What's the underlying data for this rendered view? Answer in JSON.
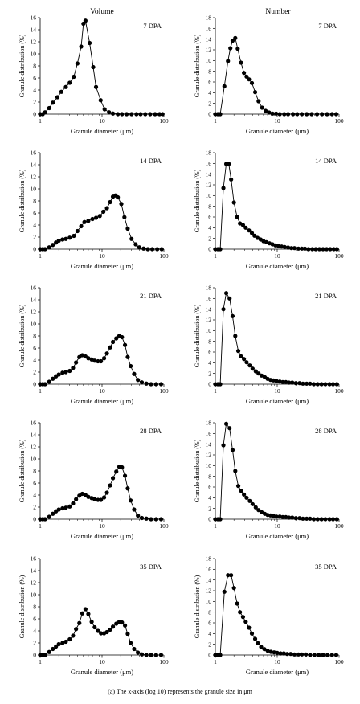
{
  "column_titles": [
    "Volume",
    "Number"
  ],
  "caption": "(a)  The x-axis (log 10) represents the granule size in μm",
  "chart_data": [
    {
      "type": "line",
      "panel": "7 DPA",
      "column": "Volume",
      "xscale": "log",
      "xlim": [
        1,
        100
      ],
      "ylim": [
        0,
        16
      ],
      "yticks": [
        0,
        2,
        4,
        6,
        8,
        10,
        12,
        14,
        16
      ],
      "xticks": [
        1,
        10,
        100
      ],
      "xlabel": "Granule diameter (μm)",
      "ylabel": "Granule distribution (%)",
      "x": [
        1,
        1.1,
        1.2,
        1.4,
        1.6,
        1.9,
        2.2,
        2.6,
        3,
        3.5,
        4,
        4.6,
        5,
        5.4,
        6.3,
        7.2,
        8,
        9.5,
        11,
        13,
        15,
        18,
        21,
        25,
        30,
        36,
        42,
        50,
        60,
        72,
        85,
        95
      ],
      "y": [
        0,
        0,
        0.3,
        1,
        1.9,
        2.8,
        3.7,
        4.5,
        5.2,
        6.2,
        8.4,
        11.2,
        15,
        15.5,
        11.8,
        7.8,
        4.5,
        2.3,
        0.8,
        0.3,
        0.1,
        0,
        0,
        0,
        0,
        0,
        0,
        0,
        0,
        0,
        0,
        0
      ]
    },
    {
      "type": "line",
      "panel": "7 DPA",
      "column": "Number",
      "xscale": "log",
      "xlim": [
        1,
        100
      ],
      "ylim": [
        0,
        18
      ],
      "yticks": [
        0,
        2,
        4,
        6,
        8,
        10,
        12,
        14,
        16,
        18
      ],
      "xticks": [
        1,
        10,
        100
      ],
      "xlabel": "Granule diameter (μm)",
      "ylabel": "Granule distribution (%)",
      "x": [
        1,
        1.1,
        1.2,
        1.4,
        1.6,
        1.75,
        1.9,
        2.1,
        2.3,
        2.6,
        2.9,
        3.2,
        3.5,
        3.9,
        4.4,
        5,
        5.7,
        6.5,
        7.4,
        8.4,
        9.6,
        11,
        13,
        15,
        18,
        21,
        25,
        30,
        36,
        44,
        53,
        64,
        77,
        90
      ],
      "y": [
        0,
        0,
        0,
        5.2,
        9.9,
        12.3,
        13.7,
        14.2,
        12.2,
        9.6,
        7.7,
        7,
        6.5,
        5.8,
        4.1,
        2.4,
        1.2,
        0.6,
        0.3,
        0.1,
        0.1,
        0,
        0,
        0,
        0,
        0,
        0,
        0,
        0,
        0,
        0,
        0,
        0,
        0
      ]
    },
    {
      "type": "line",
      "panel": "14 DPA",
      "column": "Volume",
      "xscale": "log",
      "xlim": [
        1,
        100
      ],
      "ylim": [
        0,
        16
      ],
      "yticks": [
        0,
        2,
        4,
        6,
        8,
        10,
        12,
        14,
        16
      ],
      "xticks": [
        1,
        10,
        100
      ],
      "xlabel": "Granule diameter (μm)",
      "ylabel": "Granule distribution (%)",
      "x": [
        1,
        1.1,
        1.2,
        1.4,
        1.6,
        1.8,
        2,
        2.3,
        2.6,
        3,
        3.5,
        4,
        4.6,
        5.2,
        6,
        7,
        8,
        9.2,
        10.5,
        12,
        13.5,
        15,
        16.5,
        18,
        20.5,
        23,
        26,
        30,
        35,
        40,
        47,
        55,
        65,
        78,
        92
      ],
      "y": [
        0,
        0,
        0,
        0.3,
        0.7,
        1.1,
        1.4,
        1.6,
        1.7,
        1.9,
        2.2,
        3,
        3.8,
        4.5,
        4.7,
        5,
        5.2,
        5.5,
        6.2,
        6.8,
        7.8,
        8.7,
        8.9,
        8.6,
        7.5,
        5.3,
        3.4,
        1.7,
        0.8,
        0.3,
        0.1,
        0,
        0,
        0,
        0
      ]
    },
    {
      "type": "line",
      "panel": "14 DPA",
      "column": "Number",
      "xscale": "log",
      "xlim": [
        1,
        100
      ],
      "ylim": [
        0,
        18
      ],
      "yticks": [
        0,
        2,
        4,
        6,
        8,
        10,
        12,
        14,
        16,
        18
      ],
      "xticks": [
        1,
        10,
        100
      ],
      "xlabel": "Granule diameter (μm)",
      "ylabel": "Granule distribution (%)",
      "x": [
        1,
        1.1,
        1.2,
        1.35,
        1.5,
        1.65,
        1.8,
        2,
        2.25,
        2.5,
        2.8,
        3.1,
        3.5,
        3.9,
        4.3,
        4.8,
        5.4,
        6,
        6.7,
        7.5,
        8.4,
        9.4,
        10.5,
        11.8,
        13.2,
        15,
        17,
        19,
        22,
        25,
        28,
        32,
        37,
        42,
        48,
        55,
        63,
        72,
        82,
        92
      ],
      "y": [
        0,
        0,
        0,
        11.4,
        15.9,
        15.9,
        13,
        8.7,
        6,
        4.8,
        4.5,
        4,
        3.5,
        3,
        2.5,
        2.1,
        1.8,
        1.5,
        1.3,
        1.1,
        0.9,
        0.7,
        0.6,
        0.5,
        0.4,
        0.3,
        0.2,
        0.2,
        0.1,
        0.1,
        0.1,
        0,
        0,
        0,
        0,
        0,
        0,
        0,
        0,
        0
      ]
    },
    {
      "type": "line",
      "panel": "21 DPA",
      "column": "Volume",
      "xscale": "log",
      "xlim": [
        1,
        100
      ],
      "ylim": [
        0,
        16
      ],
      "yticks": [
        0,
        2,
        4,
        6,
        8,
        10,
        12,
        14,
        16
      ],
      "xticks": [
        1,
        10,
        100
      ],
      "xlabel": "Granule diameter (μm)",
      "ylabel": "Granule distribution (%)",
      "x": [
        1,
        1.1,
        1.2,
        1.4,
        1.6,
        1.8,
        2,
        2.3,
        2.6,
        3,
        3.4,
        3.8,
        4.3,
        4.8,
        5.4,
        6,
        6.8,
        7.6,
        8.6,
        9.6,
        10.8,
        12,
        13.5,
        15,
        17,
        19,
        21,
        23.5,
        26,
        29,
        33,
        38,
        44,
        52,
        62,
        75,
        90
      ],
      "y": [
        0,
        0,
        0,
        0.4,
        0.9,
        1.3,
        1.6,
        1.9,
        2,
        2.2,
        2.7,
        3.6,
        4.5,
        4.8,
        4.6,
        4.3,
        4.1,
        3.9,
        3.8,
        3.8,
        4.3,
        5.1,
        6.1,
        7,
        7.6,
        8,
        7.8,
        6.5,
        4.5,
        3,
        1.7,
        0.7,
        0.3,
        0.1,
        0,
        0,
        0
      ]
    },
    {
      "type": "line",
      "panel": "21 DPA",
      "column": "Number",
      "xscale": "log",
      "xlim": [
        1,
        100
      ],
      "ylim": [
        0,
        18
      ],
      "yticks": [
        0,
        2,
        4,
        6,
        8,
        10,
        12,
        14,
        16,
        18
      ],
      "xticks": [
        1,
        10,
        100
      ],
      "xlabel": "Granule diameter (μm)",
      "ylabel": "Granule distribution (%)",
      "x": [
        1,
        1.1,
        1.2,
        1.35,
        1.5,
        1.7,
        1.9,
        2.1,
        2.35,
        2.6,
        2.9,
        3.2,
        3.6,
        4,
        4.5,
        5,
        5.6,
        6.3,
        7,
        7.8,
        8.7,
        9.7,
        11,
        12.3,
        13.8,
        15.5,
        17.5,
        20,
        23,
        26,
        30,
        34,
        39,
        45,
        52,
        60,
        70,
        80,
        92
      ],
      "y": [
        0,
        0,
        0,
        14,
        17,
        16,
        12.7,
        9,
        6.2,
        5.2,
        4.7,
        4.1,
        3.5,
        2.9,
        2.4,
        2,
        1.6,
        1.3,
        1,
        0.8,
        0.7,
        0.6,
        0.5,
        0.4,
        0.4,
        0.3,
        0.3,
        0.2,
        0.2,
        0.1,
        0.1,
        0.1,
        0,
        0,
        0,
        0,
        0,
        0,
        0
      ]
    },
    {
      "type": "line",
      "panel": "28 DPA",
      "column": "Volume",
      "xscale": "log",
      "xlim": [
        1,
        100
      ],
      "ylim": [
        0,
        16
      ],
      "yticks": [
        0,
        2,
        4,
        6,
        8,
        10,
        12,
        14,
        16
      ],
      "xticks": [
        1,
        10,
        100
      ],
      "xlabel": "Granule diameter (μm)",
      "ylabel": "Granule distribution (%)",
      "x": [
        1,
        1.1,
        1.2,
        1.4,
        1.6,
        1.8,
        2,
        2.3,
        2.6,
        3,
        3.4,
        3.8,
        4.3,
        4.8,
        5.4,
        6,
        6.8,
        7.6,
        8.6,
        9.6,
        10.8,
        12,
        13.5,
        15,
        17,
        19,
        21,
        23.5,
        26,
        29,
        33,
        38,
        44,
        52,
        62,
        75,
        90
      ],
      "y": [
        0,
        0,
        0,
        0.4,
        0.9,
        1.3,
        1.6,
        1.8,
        1.9,
        2.1,
        2.6,
        3.3,
        3.9,
        4.2,
        4,
        3.7,
        3.5,
        3.3,
        3.2,
        3.2,
        3.6,
        4.4,
        5.6,
        6.8,
        7.9,
        8.7,
        8.6,
        7.2,
        5.1,
        3.1,
        1.6,
        0.6,
        0.2,
        0.1,
        0,
        0,
        0
      ]
    },
    {
      "type": "line",
      "panel": "28 DPA",
      "column": "Number",
      "xscale": "log",
      "xlim": [
        1,
        100
      ],
      "ylim": [
        0,
        18
      ],
      "yticks": [
        0,
        2,
        4,
        6,
        8,
        10,
        12,
        14,
        16,
        18
      ],
      "xticks": [
        1,
        10,
        100
      ],
      "xlabel": "Granule diameter (μm)",
      "ylabel": "Granule distribution (%)",
      "x": [
        1,
        1.1,
        1.2,
        1.35,
        1.5,
        1.7,
        1.9,
        2.1,
        2.35,
        2.6,
        2.9,
        3.2,
        3.6,
        4,
        4.5,
        5,
        5.6,
        6.3,
        7,
        7.8,
        8.7,
        9.7,
        11,
        12.3,
        13.8,
        15.5,
        17.5,
        20,
        23,
        26,
        30,
        34,
        39,
        45,
        52,
        60,
        70,
        80,
        92
      ],
      "y": [
        0,
        0,
        0,
        13.8,
        17.8,
        17,
        12.9,
        9,
        6.2,
        5.3,
        4.6,
        4,
        3.4,
        2.8,
        2.2,
        1.7,
        1.3,
        1,
        0.8,
        0.7,
        0.6,
        0.5,
        0.5,
        0.4,
        0.4,
        0.3,
        0.3,
        0.2,
        0.2,
        0.1,
        0.1,
        0.1,
        0,
        0,
        0,
        0,
        0,
        0,
        0
      ]
    },
    {
      "type": "line",
      "panel": "35 DPA",
      "column": "Volume",
      "xscale": "log",
      "xlim": [
        1,
        100
      ],
      "ylim": [
        0,
        16
      ],
      "yticks": [
        0,
        2,
        4,
        6,
        8,
        10,
        12,
        14,
        16
      ],
      "xticks": [
        1,
        10,
        100
      ],
      "xlabel": "Granule diameter (μm)",
      "ylabel": "Granule distribution (%)",
      "x": [
        1,
        1.1,
        1.2,
        1.4,
        1.6,
        1.8,
        2,
        2.3,
        2.6,
        3,
        3.4,
        3.8,
        4.3,
        4.8,
        5.4,
        6,
        6.8,
        7.6,
        8.6,
        9.6,
        10.8,
        12,
        13.5,
        15,
        17,
        19,
        21,
        23.5,
        26,
        29,
        33,
        38,
        44,
        52,
        62,
        75,
        90
      ],
      "y": [
        0,
        0,
        0,
        0.5,
        1,
        1.4,
        1.8,
        2,
        2.2,
        2.6,
        3.2,
        4.3,
        5.3,
        6.9,
        7.6,
        6.8,
        5.5,
        4.6,
        4,
        3.6,
        3.6,
        3.8,
        4.2,
        4.7,
        5.2,
        5.5,
        5.4,
        4.9,
        3.5,
        2,
        1,
        0.4,
        0.1,
        0,
        0,
        0,
        0
      ]
    },
    {
      "type": "line",
      "panel": "35 DPA",
      "column": "Number",
      "xscale": "log",
      "xlim": [
        1,
        100
      ],
      "ylim": [
        0,
        18
      ],
      "yticks": [
        0,
        2,
        4,
        6,
        8,
        10,
        12,
        14,
        16,
        18
      ],
      "xticks": [
        1,
        10,
        100
      ],
      "xlabel": "Granule diameter (μm)",
      "ylabel": "Granule distribution (%)",
      "x": [
        1,
        1.1,
        1.2,
        1.4,
        1.6,
        1.8,
        2,
        2.25,
        2.5,
        2.8,
        3.1,
        3.5,
        3.9,
        4.4,
        4.9,
        5.5,
        6.2,
        7,
        7.9,
        8.9,
        10,
        11.3,
        12.8,
        14.5,
        16.5,
        19,
        22,
        25,
        29,
        34,
        40,
        47,
        55,
        65,
        77,
        90
      ],
      "y": [
        0,
        0,
        0,
        11.8,
        14.9,
        14.9,
        12.5,
        9.6,
        8,
        7.1,
        6.2,
        5.1,
        4,
        3,
        2.2,
        1.5,
        1.1,
        0.8,
        0.6,
        0.5,
        0.4,
        0.3,
        0.3,
        0.2,
        0.2,
        0.1,
        0.1,
        0.1,
        0.1,
        0,
        0,
        0,
        0,
        0,
        0,
        0
      ]
    }
  ]
}
